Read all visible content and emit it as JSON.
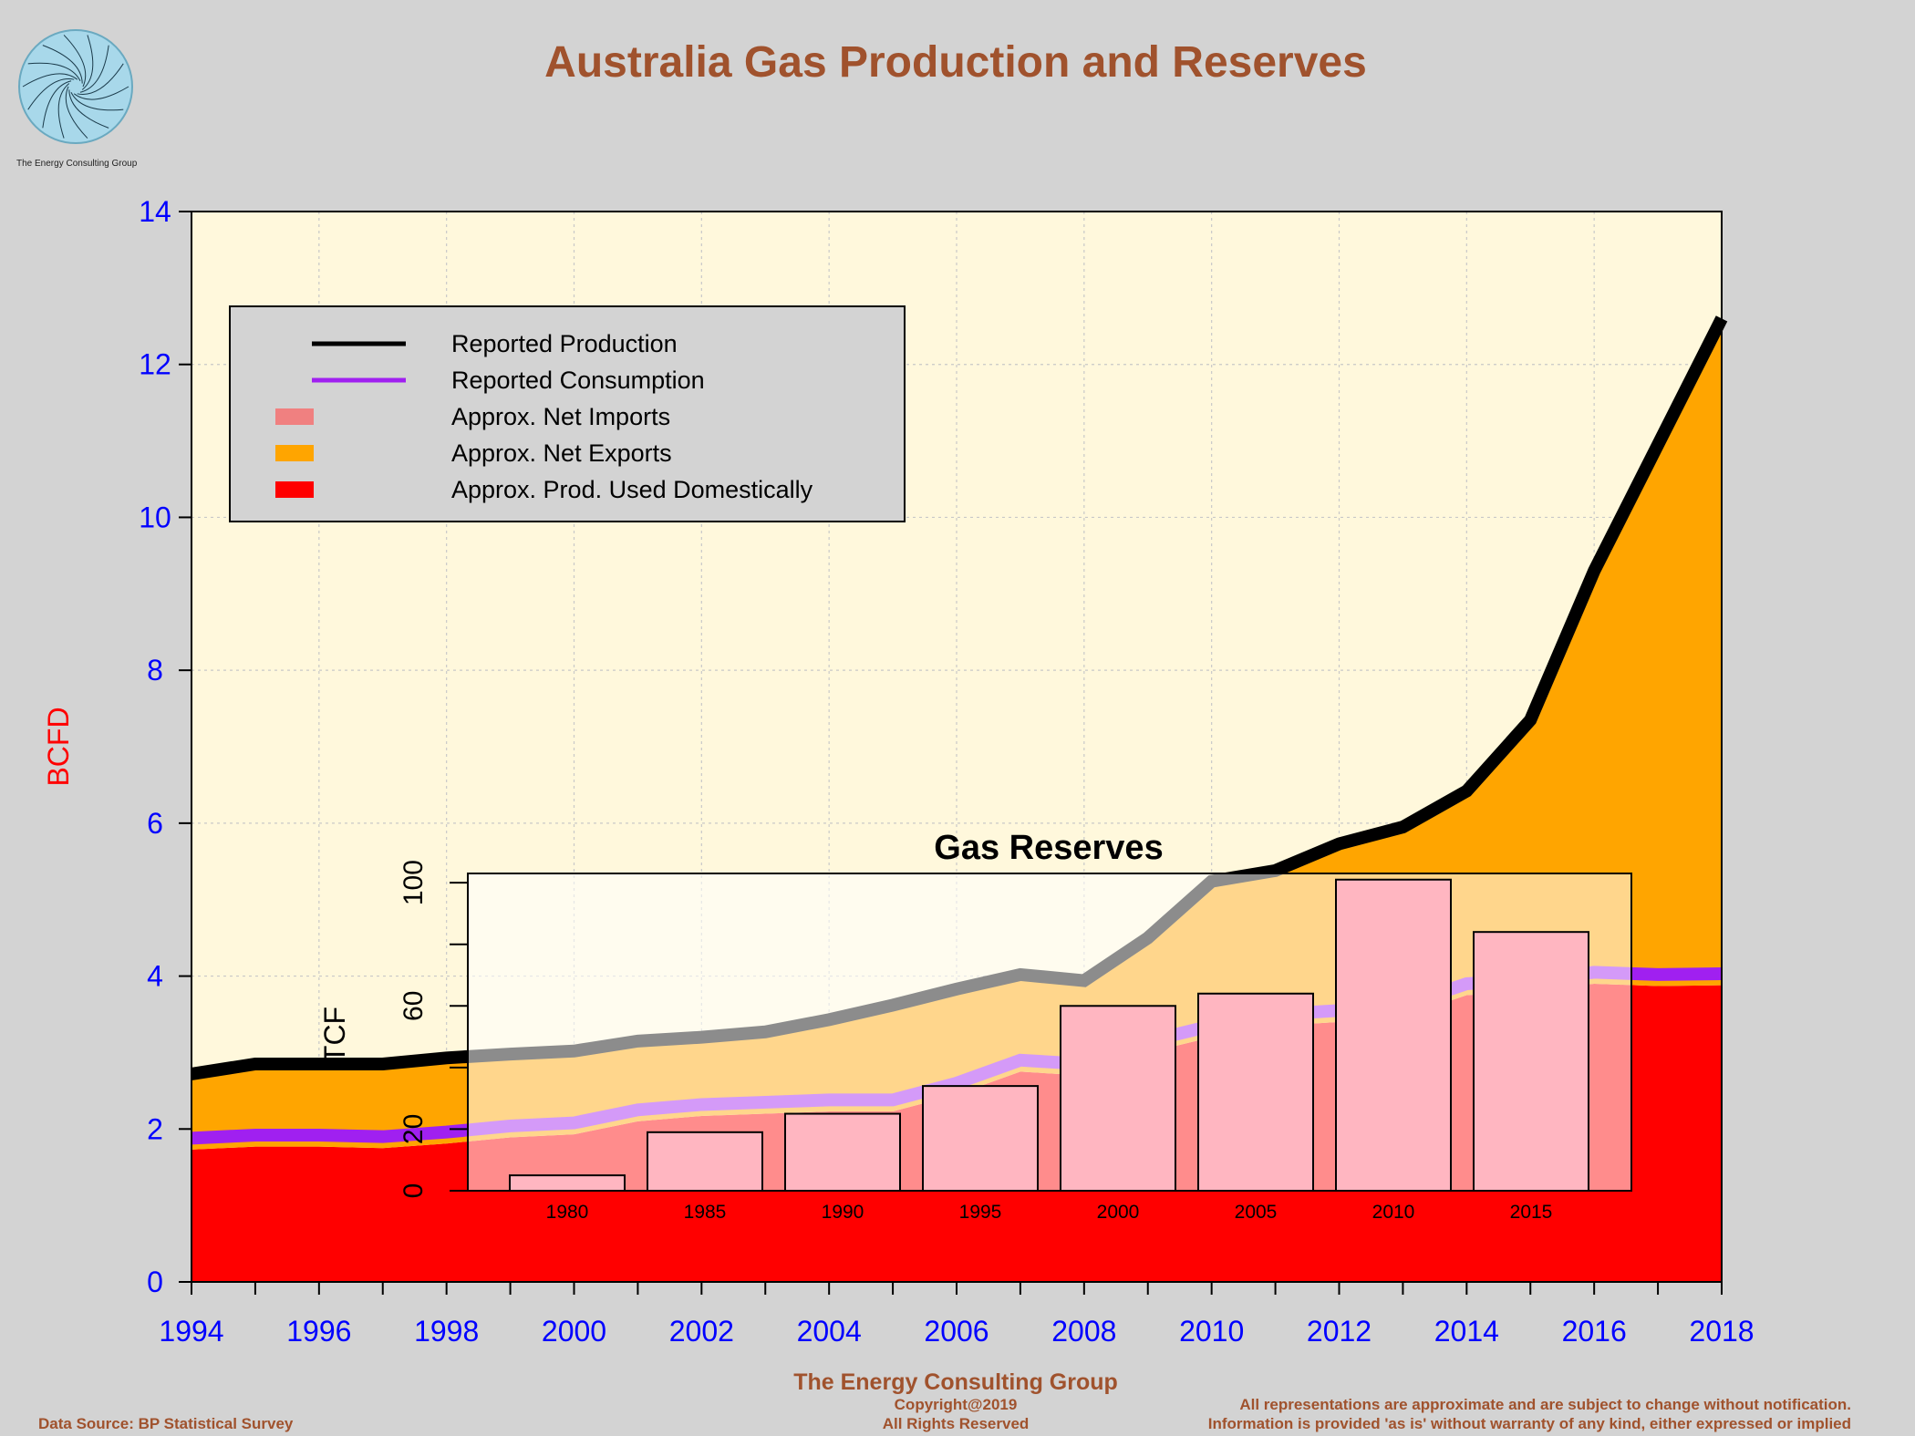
{
  "title": "Australia Gas Production and Reserves",
  "logo": {
    "caption": "The Energy Consulting Group"
  },
  "y_axis_label": "BCFD",
  "footer": {
    "center_title": "The Energy Consulting Group",
    "copyright": "Copyright@2019",
    "rights": "All Rights Reserved",
    "data_source": "Data Source: BP Statistical Survey",
    "disclaimer_1": "All representations are approximate and are subject to change without notification.",
    "disclaimer_2": "Information is provided 'as is' without warranty of any kind, either expressed or implied"
  },
  "colors": {
    "background": "#d3d3d3",
    "plot_bg": "#fff8dc",
    "production": "#000000",
    "consumption": "#a020f0",
    "net_imports": "#f08080",
    "net_exports": "#ffa500",
    "domestic": "#ff0000",
    "title": "#a0522d",
    "axis_text": "#0000ff",
    "ylabel": "#ff0000",
    "reserves_bar": "#ffb6c1"
  },
  "legend": {
    "items": [
      {
        "label": "Reported Production",
        "kind": "line",
        "color": "#000000"
      },
      {
        "label": "Reported Consumption",
        "kind": "line",
        "color": "#a020f0"
      },
      {
        "label": "Approx. Net Imports",
        "kind": "box",
        "color": "#f08080"
      },
      {
        "label": "Approx. Net Exports",
        "kind": "box",
        "color": "#ffa500"
      },
      {
        "label": "Approx. Prod. Used Domestically",
        "kind": "box",
        "color": "#ff0000"
      }
    ]
  },
  "chart_data": [
    {
      "type": "area",
      "title": "Australia Gas Production and Reserves",
      "ylabel": "BCFD",
      "x": [
        1994,
        1995,
        1996,
        1997,
        1998,
        1999,
        2000,
        2001,
        2002,
        2003,
        2004,
        2005,
        2006,
        2007,
        2008,
        2009,
        2010,
        2011,
        2012,
        2013,
        2014,
        2015,
        2016,
        2017,
        2018
      ],
      "xlim": [
        1994,
        2018
      ],
      "ylim": [
        0,
        14
      ],
      "x_ticks": [
        "1994",
        "1996",
        "1998",
        "2000",
        "2002",
        "2004",
        "2006",
        "2008",
        "2010",
        "2012",
        "2014",
        "2016",
        "2018"
      ],
      "y_ticks": [
        "0",
        "2",
        "4",
        "6",
        "8",
        "10",
        "12",
        "14"
      ],
      "grid": true,
      "legend_position": "top-left",
      "series": [
        {
          "name": "Reported Production",
          "values": [
            2.72,
            2.85,
            2.85,
            2.85,
            2.93,
            2.98,
            3.02,
            3.15,
            3.2,
            3.27,
            3.43,
            3.62,
            3.83,
            4.02,
            3.94,
            4.5,
            5.24,
            5.38,
            5.73,
            5.95,
            6.42,
            7.35,
            9.3,
            10.95,
            12.6
          ]
        },
        {
          "name": "Reported Consumption",
          "values": [
            1.88,
            1.92,
            1.92,
            1.9,
            1.96,
            2.04,
            2.08,
            2.25,
            2.32,
            2.35,
            2.38,
            2.38,
            2.6,
            2.9,
            2.85,
            3.15,
            3.35,
            3.5,
            3.55,
            3.62,
            3.9,
            3.95,
            4.05,
            4.02,
            4.03
          ]
        }
      ]
    },
    {
      "type": "bar",
      "title": "Gas Reserves",
      "ylabel": "TCF",
      "categories": [
        "1980",
        "1985",
        "1990",
        "1995",
        "2000",
        "2005",
        "2010",
        "2015"
      ],
      "values": [
        5,
        19,
        25,
        34,
        60,
        64,
        101,
        84
      ],
      "ylim": [
        0,
        103
      ],
      "y_ticks": [
        "0",
        "20",
        "60",
        "100"
      ]
    }
  ]
}
